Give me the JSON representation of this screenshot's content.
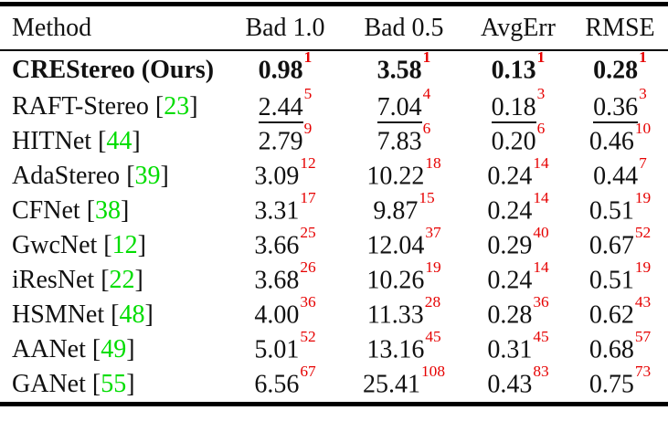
{
  "table": {
    "columns": [
      "Method",
      "Bad 1.0",
      "Bad 0.5",
      "AvgErr",
      "RMSE"
    ],
    "cite_brackets": [
      "[",
      "]"
    ],
    "rows": [
      {
        "name": "CREStereo (Ours)",
        "cite": null,
        "emph": "bold",
        "cells": [
          [
            "0.98",
            "1"
          ],
          [
            "3.58",
            "1"
          ],
          [
            "0.13",
            "1"
          ],
          [
            "0.28",
            "1"
          ]
        ]
      },
      {
        "name": "RAFT-Stereo",
        "cite": "23",
        "emph": "underline",
        "cells": [
          [
            "2.44",
            "5"
          ],
          [
            "7.04",
            "4"
          ],
          [
            "0.18",
            "3"
          ],
          [
            "0.36",
            "3"
          ]
        ]
      },
      {
        "name": "HITNet",
        "cite": "44",
        "emph": null,
        "cells": [
          [
            "2.79",
            "9"
          ],
          [
            "7.83",
            "6"
          ],
          [
            "0.20",
            "6"
          ],
          [
            "0.46",
            "10"
          ]
        ]
      },
      {
        "name": "AdaStereo",
        "cite": "39",
        "emph": null,
        "cells": [
          [
            "3.09",
            "12"
          ],
          [
            "10.22",
            "18"
          ],
          [
            "0.24",
            "14"
          ],
          [
            "0.44",
            "7"
          ]
        ]
      },
      {
        "name": "CFNet",
        "cite": "38",
        "emph": null,
        "cells": [
          [
            "3.31",
            "17"
          ],
          [
            "9.87",
            "15"
          ],
          [
            "0.24",
            "14"
          ],
          [
            "0.51",
            "19"
          ]
        ]
      },
      {
        "name": "GwcNet",
        "cite": "12",
        "emph": null,
        "cells": [
          [
            "3.66",
            "25"
          ],
          [
            "12.04",
            "37"
          ],
          [
            "0.29",
            "40"
          ],
          [
            "0.67",
            "52"
          ]
        ]
      },
      {
        "name": "iResNet",
        "cite": "22",
        "emph": null,
        "cells": [
          [
            "3.68",
            "26"
          ],
          [
            "10.26",
            "19"
          ],
          [
            "0.24",
            "14"
          ],
          [
            "0.51",
            "19"
          ]
        ]
      },
      {
        "name": "HSMNet",
        "cite": "48",
        "emph": null,
        "cells": [
          [
            "4.00",
            "36"
          ],
          [
            "11.33",
            "28"
          ],
          [
            "0.28",
            "36"
          ],
          [
            "0.62",
            "43"
          ]
        ]
      },
      {
        "name": "AANet",
        "cite": "49",
        "emph": null,
        "cells": [
          [
            "5.01",
            "52"
          ],
          [
            "13.16",
            "45"
          ],
          [
            "0.31",
            "45"
          ],
          [
            "0.68",
            "57"
          ]
        ]
      },
      {
        "name": "GANet",
        "cite": "55",
        "emph": null,
        "cells": [
          [
            "6.56",
            "67"
          ],
          [
            "25.41",
            "108"
          ],
          [
            "0.43",
            "83"
          ],
          [
            "0.75",
            "73"
          ]
        ]
      }
    ]
  },
  "colors": {
    "citation_green": "#00dd00",
    "rank_red": "#e60000"
  }
}
